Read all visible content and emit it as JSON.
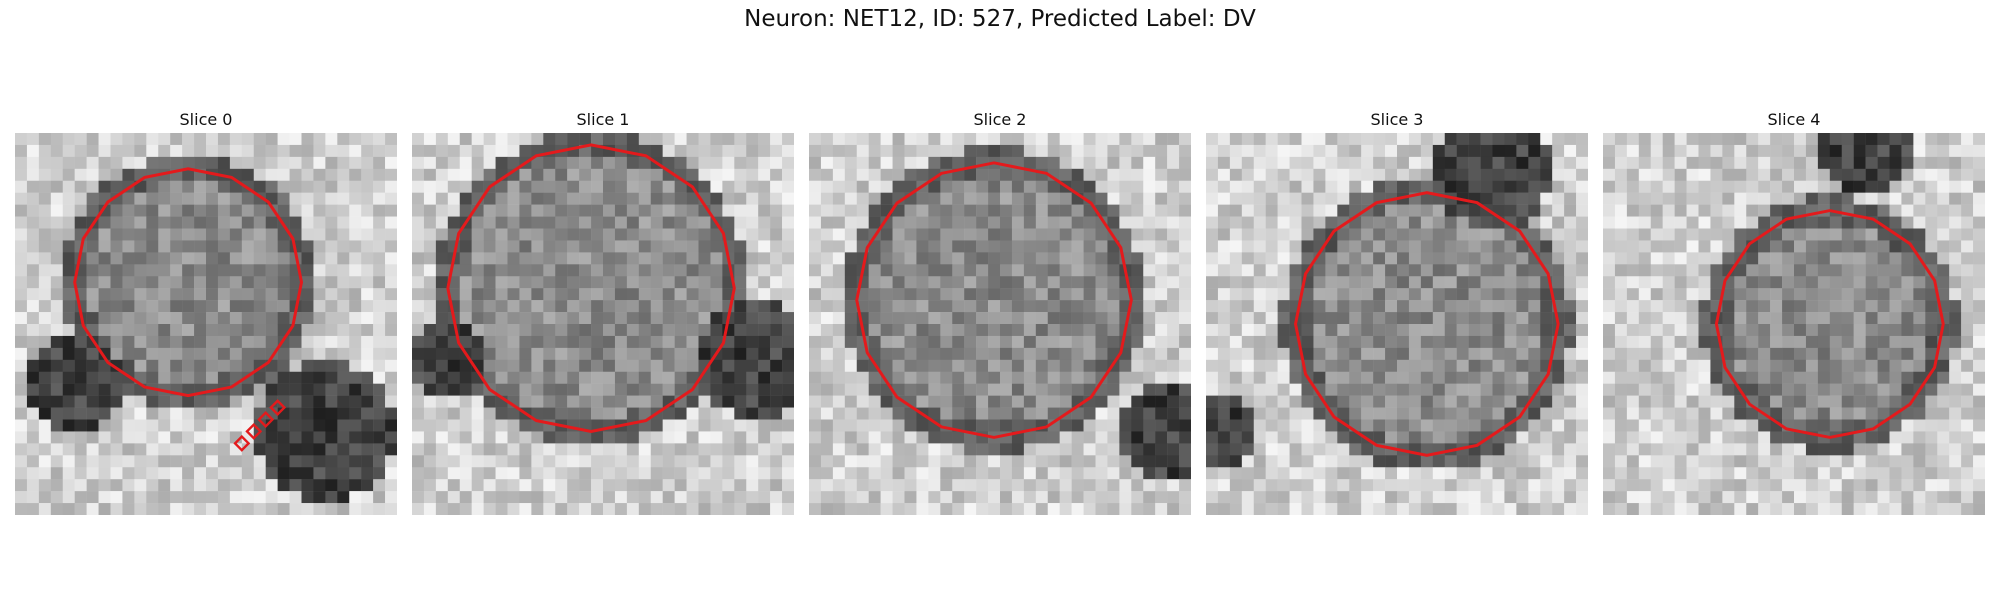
{
  "figure": {
    "title": "Neuron: NET12, ID: 527, Predicted Label: DV"
  },
  "panels": [
    {
      "title": "Slice 0"
    },
    {
      "title": "Slice 1"
    },
    {
      "title": "Slice 2"
    },
    {
      "title": "Slice 3"
    },
    {
      "title": "Slice 4"
    }
  ],
  "colors": {
    "contour": "#e41a1c",
    "background": "#ffffff"
  }
}
